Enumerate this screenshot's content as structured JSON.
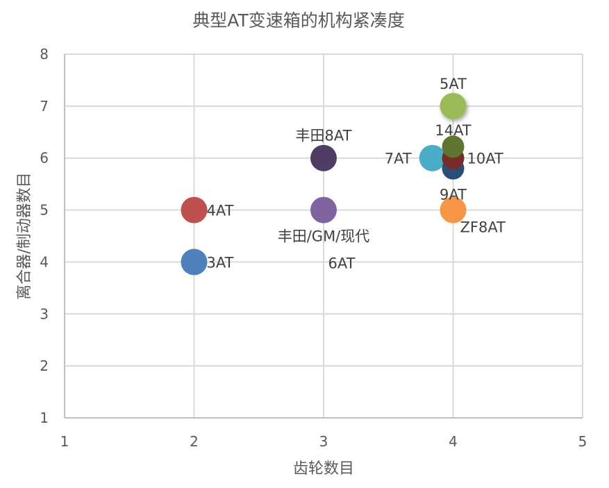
{
  "chart_data": {
    "type": "scatter",
    "title": "典型AT变速箱的机构紧凑度",
    "xlabel": "齿轮数目",
    "ylabel": "离合器/制动器数目",
    "xlim": [
      1,
      5
    ],
    "ylim": [
      1,
      8
    ],
    "xticks": [
      "1",
      "2",
      "3",
      "4",
      "5"
    ],
    "yticks": [
      "1",
      "2",
      "3",
      "4",
      "5",
      "6",
      "7",
      "8"
    ],
    "grid": true,
    "legend": "none",
    "points": [
      {
        "label": "3AT",
        "x": 2,
        "y": 4,
        "color": "#4F81BD",
        "label_pos": "right"
      },
      {
        "label": "4AT",
        "x": 2,
        "y": 5,
        "color": "#C0504D",
        "label_pos": "right"
      },
      {
        "label": "丰田/GM/现代\n6AT",
        "label_lines": [
          "丰田/GM/现代",
          "6AT"
        ],
        "x": 3,
        "y": 5,
        "color": "#8064A2",
        "label_pos": "below"
      },
      {
        "label": "丰田8AT",
        "x": 3,
        "y": 6,
        "color": "#4F3D63",
        "label_pos": "above"
      },
      {
        "label": "7AT",
        "x": 3.84,
        "y": 6,
        "color": "#4BACC6",
        "label_pos": "left"
      },
      {
        "label": "9AT",
        "x": 4,
        "y": 5.8,
        "color": "#2C4D75",
        "label_pos": "below"
      },
      {
        "label": "10AT",
        "x": 4,
        "y": 6,
        "color": "#772C2A",
        "label_pos": "right"
      },
      {
        "label": "14AT",
        "x": 4,
        "y": 6.22,
        "color": "#5F7530",
        "label_pos": "above"
      },
      {
        "label": "5AT",
        "x": 4,
        "y": 7,
        "color": "#9BBB59",
        "label_pos": "above"
      },
      {
        "label": "ZF8AT",
        "x": 4,
        "y": 5,
        "color": "#F79646",
        "label_pos": "below-right"
      }
    ]
  }
}
